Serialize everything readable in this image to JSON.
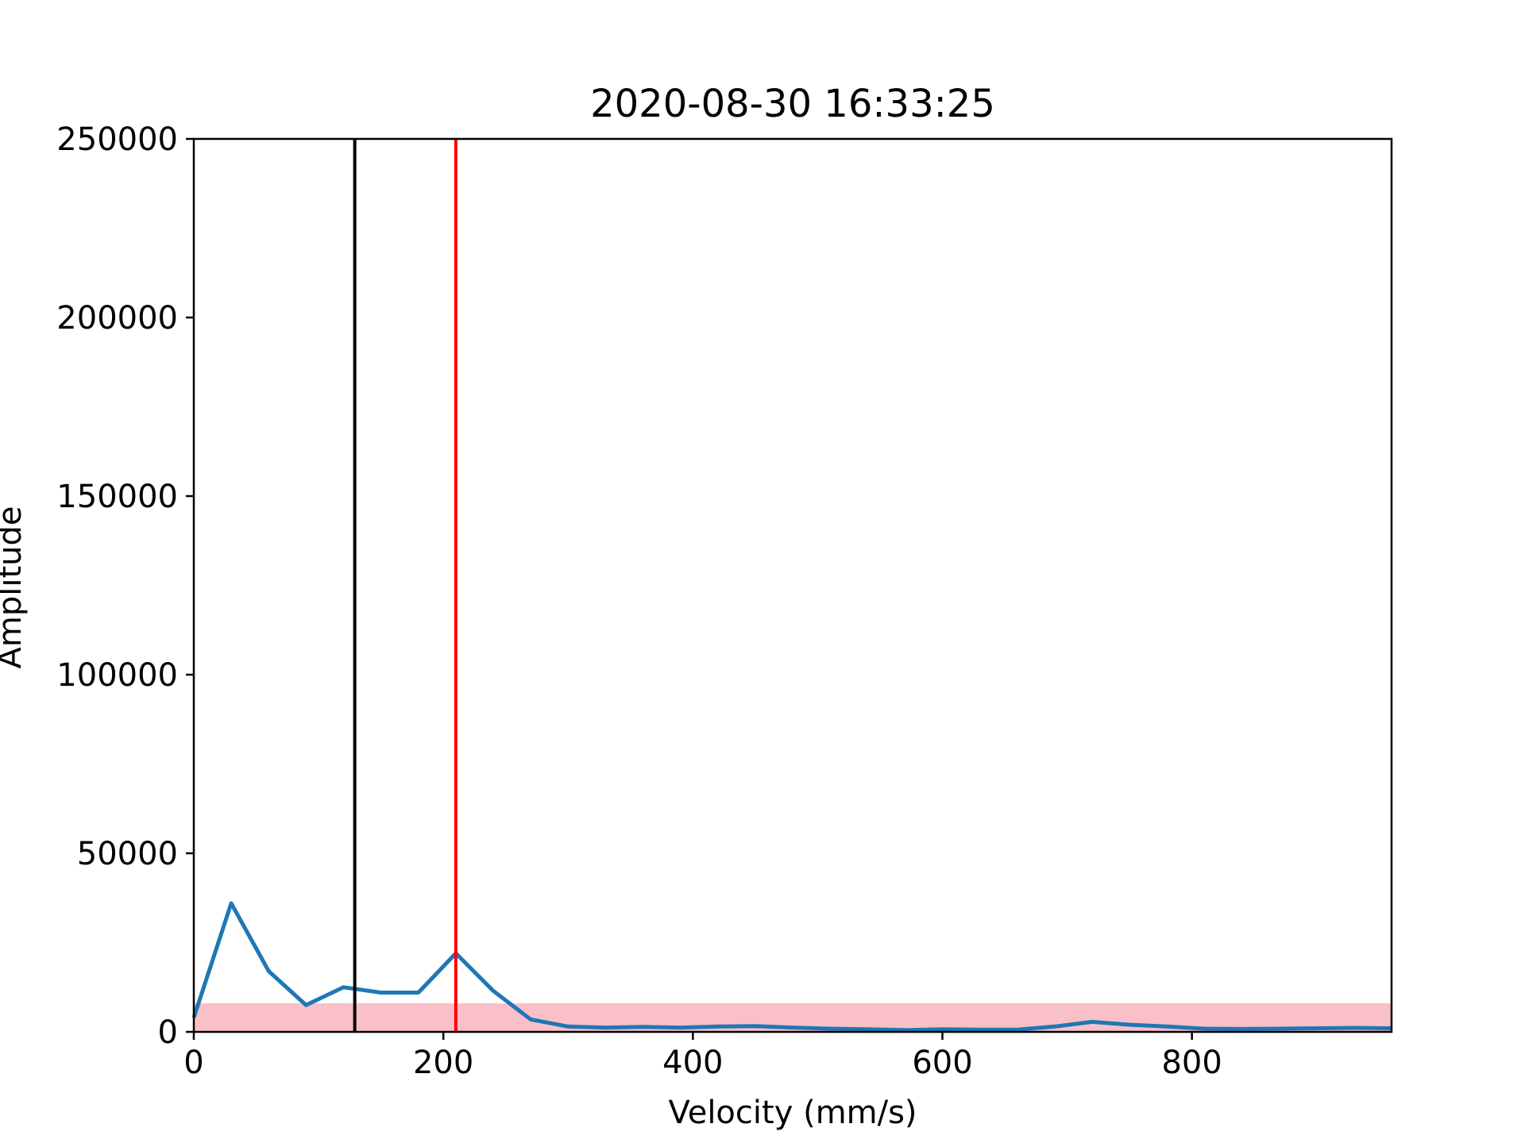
{
  "chart_data": {
    "type": "line",
    "title": "2020-08-30 16:33:25",
    "xlabel": "Velocity (mm/s)",
    "ylabel": "Amplitude",
    "xlim": [
      0,
      960
    ],
    "ylim": [
      0,
      250000
    ],
    "xticks": [
      0,
      200,
      400,
      600,
      800
    ],
    "xtick_labels": [
      "0",
      "200",
      "400",
      "600",
      "800"
    ],
    "yticks": [
      0,
      50000,
      100000,
      150000,
      200000,
      250000
    ],
    "ytick_labels": [
      "0",
      "50000",
      "100000",
      "150000",
      "200000",
      "250000"
    ],
    "grid": false,
    "series": [
      {
        "color": "#1f77b4",
        "x": [
          0,
          30,
          60,
          90,
          120,
          150,
          180,
          210,
          240,
          270,
          300,
          330,
          360,
          390,
          420,
          450,
          480,
          510,
          540,
          570,
          600,
          630,
          660,
          690,
          720,
          750,
          780,
          810,
          840,
          870,
          900,
          930,
          960
        ],
        "y": [
          4000,
          36000,
          17000,
          7500,
          12500,
          11000,
          11000,
          22000,
          11500,
          3500,
          1500,
          1200,
          1400,
          1200,
          1500,
          1600,
          1200,
          900,
          700,
          500,
          700,
          600,
          600,
          1500,
          2800,
          2000,
          1500,
          900,
          800,
          900,
          1000,
          1100,
          1000
        ]
      }
    ],
    "threshold_band": {
      "y0": 0,
      "y1": 8000,
      "color": "#f9c0c8"
    },
    "vertical_lines": [
      {
        "x": 129,
        "color": "#000000"
      },
      {
        "x": 210,
        "color": "#ff0000"
      }
    ]
  }
}
